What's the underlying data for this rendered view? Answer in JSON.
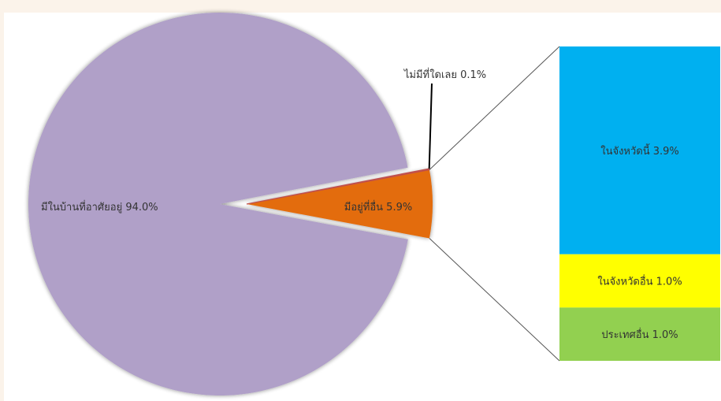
{
  "chart_data": {
    "type": "pie",
    "title": "",
    "slices": [
      {
        "label": "มีในบ้านที่อาศัยอยู่",
        "value": 94.0,
        "display": "มีในบ้านที่อาศัยอยู่ 94.0%",
        "color": "#b0a0c8"
      },
      {
        "label": "มีอยู่ที่อื่น",
        "value": 5.9,
        "display": "มีอยู่ที่อื่น 5.9%",
        "color": "#e36c0a"
      },
      {
        "label": "ไม่มีที่ใดเลย",
        "value": 0.1,
        "display": "ไม่มีที่ใดเลย 0.1%",
        "color": "#c0504d"
      }
    ],
    "breakdown_of": "มีอยู่ที่อื่น",
    "breakdown": {
      "type": "stacked-bar",
      "segments": [
        {
          "label": "ในจังหวัดนี้",
          "value": 3.9,
          "display": "ในจังหวัดนี้ 3.9%",
          "color": "#00b0f0"
        },
        {
          "label": "ในจังหวัดอื่น",
          "value": 1.0,
          "display": "ในจังหวัดอื่น 1.0%",
          "color": "#ffff00"
        },
        {
          "label": "ประเทศอื่น",
          "value": 1.0,
          "display": "ประเทศอื่น 1.0%",
          "color": "#92d050"
        }
      ]
    }
  }
}
